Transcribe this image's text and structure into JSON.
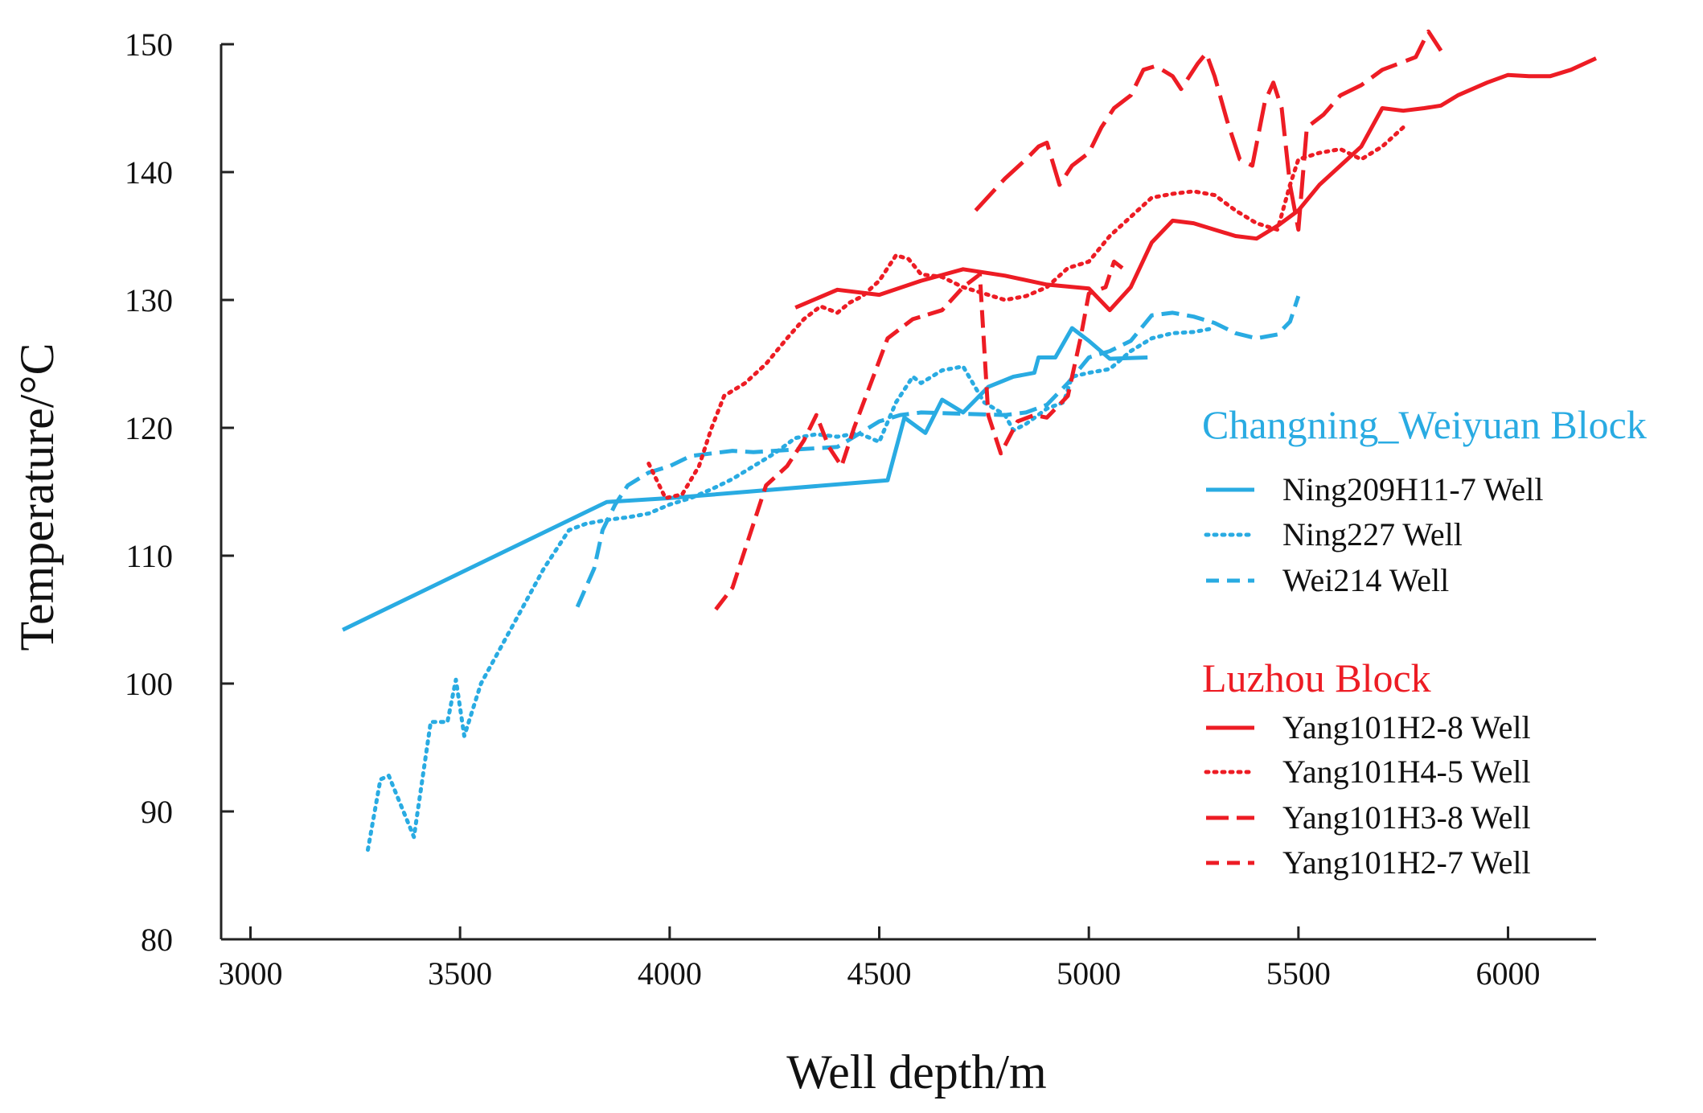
{
  "chart_data": {
    "type": "line",
    "title": "",
    "xlabel": "Well depth/m",
    "ylabel": "Temperature/°C",
    "xlim": [
      2930,
      6210
    ],
    "ylim": [
      80,
      150
    ],
    "x_ticks": [
      3000,
      3500,
      4000,
      4500,
      5000,
      5500,
      6000
    ],
    "y_ticks": [
      80,
      90,
      100,
      110,
      120,
      130,
      140,
      150
    ],
    "x_tick_labels": [
      "3000",
      "3500",
      "4000",
      "4500",
      "5000",
      "5500",
      "6000"
    ],
    "y_tick_labels": [
      "80",
      "90",
      "100",
      "110",
      "120",
      "130",
      "140",
      "150"
    ],
    "legend_placement": "right",
    "groups": [
      {
        "name": "Changning_Weiyuan Block",
        "color": "#29abe2",
        "series": [
          {
            "name": "Ning209H11-7 Well",
            "style": "solid",
            "points": [
              [
                3220,
                104.2
              ],
              [
                3850,
                114.2
              ],
              [
                4000,
                114.5
              ],
              [
                4520,
                115.9
              ],
              [
                4560,
                120.8
              ],
              [
                4610,
                119.6
              ],
              [
                4650,
                122.2
              ],
              [
                4700,
                121.2
              ],
              [
                4760,
                123.2
              ],
              [
                4820,
                124.0
              ],
              [
                4870,
                124.3
              ],
              [
                4880,
                125.5
              ],
              [
                4920,
                125.5
              ],
              [
                4960,
                127.8
              ],
              [
                5000,
                126.8
              ],
              [
                5050,
                125.4
              ],
              [
                5140,
                125.5
              ]
            ]
          },
          {
            "name": "Ning227 Well",
            "style": "dotted",
            "points": [
              [
                3280,
                87.0
              ],
              [
                3310,
                92.5
              ],
              [
                3330,
                92.8
              ],
              [
                3390,
                88.0
              ],
              [
                3430,
                97.0
              ],
              [
                3470,
                97.0
              ],
              [
                3490,
                100.3
              ],
              [
                3510,
                95.9
              ],
              [
                3550,
                100.0
              ],
              [
                3600,
                103.0
              ],
              [
                3650,
                106.0
              ],
              [
                3700,
                109.0
              ],
              [
                3760,
                112.0
              ],
              [
                3800,
                112.5
              ],
              [
                3850,
                112.8
              ],
              [
                3900,
                113.0
              ],
              [
                3950,
                113.3
              ],
              [
                4000,
                114.0
              ],
              [
                4050,
                114.5
              ],
              [
                4100,
                115.2
              ],
              [
                4150,
                116.0
              ],
              [
                4200,
                117.0
              ],
              [
                4250,
                118.0
              ],
              [
                4300,
                119.2
              ],
              [
                4350,
                119.5
              ],
              [
                4400,
                119.3
              ],
              [
                4450,
                119.6
              ],
              [
                4500,
                118.9
              ],
              [
                4540,
                122.0
              ],
              [
                4580,
                124.0
              ],
              [
                4600,
                123.5
              ],
              [
                4650,
                124.5
              ],
              [
                4700,
                124.8
              ],
              [
                4750,
                122.0
              ],
              [
                4800,
                121.0
              ],
              [
                4820,
                119.8
              ],
              [
                4850,
                120.3
              ],
              [
                4900,
                121.5
              ],
              [
                4940,
                122.0
              ],
              [
                4960,
                124.0
              ],
              [
                5000,
                124.3
              ],
              [
                5050,
                124.6
              ],
              [
                5100,
                126.0
              ],
              [
                5150,
                127.0
              ],
              [
                5200,
                127.4
              ],
              [
                5250,
                127.5
              ],
              [
                5300,
                127.8
              ]
            ]
          },
          {
            "name": "Wei214 Well",
            "style": "dashed",
            "points": [
              [
                3780,
                106.0
              ],
              [
                3820,
                109.0
              ],
              [
                3840,
                112.0
              ],
              [
                3870,
                114.0
              ],
              [
                3900,
                115.5
              ],
              [
                3950,
                116.5
              ],
              [
                4000,
                117.0
              ],
              [
                4050,
                117.8
              ],
              [
                4100,
                118.0
              ],
              [
                4150,
                118.2
              ],
              [
                4200,
                118.1
              ],
              [
                4300,
                118.3
              ],
              [
                4400,
                118.5
              ],
              [
                4450,
                119.5
              ],
              [
                4500,
                120.5
              ],
              [
                4550,
                121.0
              ],
              [
                4600,
                121.2
              ],
              [
                4700,
                121.1
              ],
              [
                4800,
                121.0
              ],
              [
                4850,
                121.2
              ],
              [
                4900,
                121.8
              ],
              [
                4950,
                123.5
              ],
              [
                5000,
                125.5
              ],
              [
                5050,
                126.0
              ],
              [
                5100,
                126.8
              ],
              [
                5150,
                128.8
              ],
              [
                5200,
                129.0
              ],
              [
                5250,
                128.7
              ],
              [
                5300,
                128.2
              ],
              [
                5350,
                127.4
              ],
              [
                5400,
                127.0
              ],
              [
                5450,
                127.3
              ],
              [
                5480,
                128.3
              ],
              [
                5500,
                130.3
              ]
            ]
          }
        ]
      },
      {
        "name": "Luzhou Block",
        "color": "#ed1c24",
        "series": [
          {
            "name": "Yang101H2-8 Well",
            "style": "solid",
            "points": [
              [
                4300,
                129.4
              ],
              [
                4400,
                130.8
              ],
              [
                4500,
                130.4
              ],
              [
                4600,
                131.5
              ],
              [
                4700,
                132.4
              ],
              [
                4800,
                131.9
              ],
              [
                4900,
                131.2
              ],
              [
                5000,
                130.9
              ],
              [
                5050,
                129.2
              ],
              [
                5100,
                131.0
              ],
              [
                5150,
                134.5
              ],
              [
                5200,
                136.2
              ],
              [
                5250,
                136.0
              ],
              [
                5300,
                135.5
              ],
              [
                5350,
                135.0
              ],
              [
                5400,
                134.8
              ],
              [
                5450,
                135.8
              ],
              [
                5500,
                137.0
              ],
              [
                5550,
                139.0
              ],
              [
                5600,
                140.5
              ],
              [
                5650,
                142.0
              ],
              [
                5700,
                145.0
              ],
              [
                5750,
                144.8
              ],
              [
                5800,
                145.0
              ],
              [
                5840,
                145.2
              ],
              [
                5880,
                146.0
              ],
              [
                5950,
                147.0
              ],
              [
                6000,
                147.6
              ],
              [
                6050,
                147.5
              ],
              [
                6100,
                147.5
              ],
              [
                6150,
                148.0
              ],
              [
                6210,
                148.9
              ]
            ]
          },
          {
            "name": "Yang101H4-5 Well",
            "style": "dotted",
            "points": [
              [
                3950,
                117.2
              ],
              [
                3990,
                114.5
              ],
              [
                4030,
                114.8
              ],
              [
                4070,
                117.0
              ],
              [
                4100,
                120.0
              ],
              [
                4130,
                122.5
              ],
              [
                4180,
                123.5
              ],
              [
                4230,
                125.0
              ],
              [
                4280,
                127.0
              ],
              [
                4320,
                128.5
              ],
              [
                4360,
                129.5
              ],
              [
                4400,
                129.0
              ],
              [
                4430,
                129.8
              ],
              [
                4460,
                130.3
              ],
              [
                4500,
                131.5
              ],
              [
                4540,
                133.5
              ],
              [
                4570,
                133.2
              ],
              [
                4600,
                132.0
              ],
              [
                4650,
                131.8
              ],
              [
                4700,
                131.0
              ],
              [
                4750,
                130.5
              ],
              [
                4800,
                130.0
              ],
              [
                4850,
                130.3
              ],
              [
                4900,
                131.0
              ],
              [
                4950,
                132.5
              ],
              [
                5000,
                133.0
              ],
              [
                5050,
                135.0
              ],
              [
                5100,
                136.5
              ],
              [
                5150,
                138.0
              ],
              [
                5200,
                138.3
              ],
              [
                5250,
                138.5
              ],
              [
                5300,
                138.2
              ],
              [
                5350,
                137.0
              ],
              [
                5400,
                136.0
              ],
              [
                5450,
                135.5
              ],
              [
                5480,
                139.0
              ],
              [
                5500,
                141.0
              ],
              [
                5550,
                141.5
              ],
              [
                5600,
                141.8
              ],
              [
                5650,
                141.0
              ],
              [
                5700,
                142.0
              ],
              [
                5750,
                143.5
              ]
            ]
          },
          {
            "name": "Yang101H3-8 Well",
            "style": "longdash",
            "points": [
              [
                4730,
                137.0
              ],
              [
                4800,
                139.5
              ],
              [
                4850,
                141.0
              ],
              [
                4880,
                142.0
              ],
              [
                4900,
                142.3
              ],
              [
                4930,
                139.0
              ],
              [
                4960,
                140.5
              ],
              [
                5000,
                141.5
              ],
              [
                5030,
                143.5
              ],
              [
                5060,
                145.0
              ],
              [
                5100,
                146.0
              ],
              [
                5130,
                148.0
              ],
              [
                5160,
                148.3
              ],
              [
                5200,
                147.5
              ],
              [
                5220,
                146.5
              ],
              [
                5260,
                148.5
              ],
              [
                5280,
                149.3
              ],
              [
                5300,
                147.5
              ],
              [
                5330,
                144.0
              ],
              [
                5360,
                141.0
              ],
              [
                5390,
                140.5
              ],
              [
                5420,
                145.5
              ],
              [
                5440,
                147.0
              ],
              [
                5460,
                145.0
              ],
              [
                5480,
                139.0
              ],
              [
                5500,
                135.5
              ],
              [
                5520,
                143.5
              ],
              [
                5560,
                144.5
              ],
              [
                5600,
                146.0
              ],
              [
                5650,
                146.8
              ],
              [
                5700,
                148.0
              ],
              [
                5740,
                148.5
              ],
              [
                5780,
                149.0
              ],
              [
                5810,
                151.0
              ],
              [
                5840,
                149.5
              ]
            ]
          },
          {
            "name": "Yang101H2-7 Well",
            "style": "dashed",
            "points": [
              [
                4110,
                105.8
              ],
              [
                4150,
                107.5
              ],
              [
                4190,
                111.5
              ],
              [
                4230,
                115.5
              ],
              [
                4280,
                117.0
              ],
              [
                4320,
                119.0
              ],
              [
                4350,
                121.0
              ],
              [
                4380,
                118.5
              ],
              [
                4410,
                117.0
              ],
              [
                4440,
                120.0
              ],
              [
                4480,
                123.5
              ],
              [
                4520,
                127.0
              ],
              [
                4580,
                128.5
              ],
              [
                4650,
                129.2
              ],
              [
                4700,
                131.0
              ],
              [
                4740,
                132.0
              ],
              [
                4760,
                121.0
              ],
              [
                4790,
                118.0
              ],
              [
                4830,
                120.5
              ],
              [
                4870,
                121.0
              ],
              [
                4900,
                120.8
              ],
              [
                4950,
                122.5
              ],
              [
                4980,
                127.0
              ],
              [
                5000,
                130.5
              ],
              [
                5040,
                131.0
              ],
              [
                5060,
                133.0
              ],
              [
                5080,
                132.5
              ]
            ]
          }
        ]
      }
    ]
  }
}
